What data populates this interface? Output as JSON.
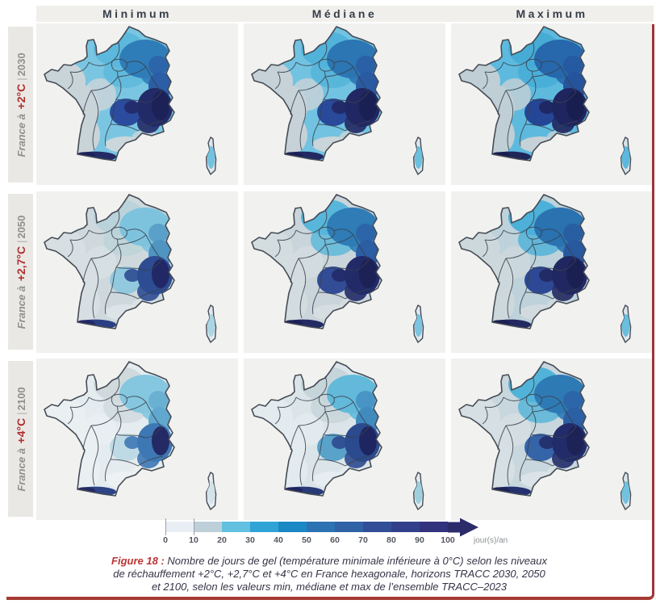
{
  "figure": {
    "columns": [
      {
        "label": "Minimum"
      },
      {
        "label": "Médiane"
      },
      {
        "label": "Maximum"
      }
    ],
    "rows": [
      {
        "prefix": "France à",
        "temp": "+2°C",
        "separator": "|",
        "year": "2030"
      },
      {
        "prefix": "France à",
        "temp": "+2,7°C",
        "separator": "|",
        "year": "2050"
      },
      {
        "prefix": "France à",
        "temp": "+4°C",
        "separator": "|",
        "year": "2100"
      }
    ]
  },
  "colorbar": {
    "tick_labels": [
      "0",
      "10",
      "20",
      "30",
      "40",
      "50",
      "60",
      "70",
      "80",
      "90",
      "100"
    ],
    "unit": "jour(s)/an",
    "segment_colors": [
      "#e9eef5",
      "#bdd0da",
      "#62c0e0",
      "#30a3d6",
      "#1b88c6",
      "#2d72b2",
      "#2f62a6",
      "#314f98",
      "#32408b",
      "#31337c"
    ],
    "arrow_color": "#2c2c6b"
  },
  "caption": {
    "figure_label": "Figure 18 :",
    "line1": "Nombre de jours de gel (température minimale inférieure à 0°C) selon les niveaux",
    "line2": "de réchauffement +2°C, +2,7°C et +4°C en France hexagonale, horizons TRACC 2030, 2050",
    "line3": "et 2100, selon les valeurs min, médiane et max de l’ensemble TRACC–2023"
  },
  "style": {
    "accent_red": "#a53b34",
    "label_red": "#b02e2e",
    "header_text": "#373e4a",
    "panel_bg": "#f1f1ef",
    "strip_bg": "#eae8e5",
    "band_bg": "#f0efec"
  },
  "maps": {
    "cells": [
      {
        "base": "#7ac6e2",
        "west": "#c9d4d9",
        "south": "#ccd7db",
        "north": "#5cb8dc",
        "northeast": "#2f7db8",
        "jura": "#2c5ea6",
        "massif": "#27469a",
        "alps": "#222a68",
        "alps_core": "#1c2158",
        "pyrenees": "#232a66",
        "corsica": "#dde7eb",
        "corsica_center": "#74c2e0"
      },
      {
        "base": "#72c3e1",
        "west": "#c6d2d8",
        "south": "#cad5d9",
        "north": "#52b3da",
        "northeast": "#2c76b3",
        "jura": "#2a5aa2",
        "massif": "#254296",
        "alps": "#212763",
        "alps_core": "#1b2054",
        "pyrenees": "#222862",
        "corsica": "#dde7eb",
        "corsica_center": "#6cc0de"
      },
      {
        "base": "#5dbade",
        "west": "#bfcfd5",
        "south": "#c6d2d7",
        "north": "#46acd6",
        "northeast": "#2768ac",
        "jura": "#26549c",
        "massif": "#223e90",
        "alps": "#1f255e",
        "alps_core": "#191e50",
        "pyrenees": "#202658",
        "corsica": "#d9e4e9",
        "corsica_center": "#5cb8dc"
      },
      {
        "base": "#cfd9dd",
        "west": "#d7dfe2",
        "south": "#dde4e7",
        "north": "#bad3da",
        "northeast": "#7ec3de",
        "jura": "#5094c2",
        "massif": "#8ec8de",
        "alps": "#2d4c92",
        "alps_core": "#222866",
        "pyrenees": "#2b4084",
        "corsica": "#e2eaee",
        "corsica_center": "#abd5e3"
      },
      {
        "base": "#c9d5da",
        "west": "#d3dcdf",
        "south": "#d6dee1",
        "north": "#58b6da",
        "northeast": "#2f7cb6",
        "jura": "#2c5ea4",
        "massif": "#2a4692",
        "alps": "#222a68",
        "alps_core": "#1c2156",
        "pyrenees": "#232a64",
        "corsica": "#dfe8ec",
        "corsica_center": "#7cc4e0"
      },
      {
        "base": "#bdd2da",
        "west": "#cdd8dc",
        "south": "#d1dbdf",
        "north": "#4cb0d8",
        "northeast": "#2a72b0",
        "jura": "#28589e",
        "massif": "#254090",
        "alps": "#212861",
        "alps_core": "#1b2052",
        "pyrenees": "#222860",
        "corsica": "#dce6ea",
        "corsica_center": "#6abede"
      },
      {
        "base": "#e5ecef",
        "west": "#eaeff2",
        "south": "#edf1f3",
        "north": "#d0dadd",
        "northeast": "#86c7e0",
        "jura": "#60a8cd",
        "massif": "#bcdae4",
        "alps": "#3e78b4",
        "alps_core": "#242a64",
        "pyrenees": "#2d4486",
        "corsica": "#e9eff2",
        "corsica_center": "#d2e4ea"
      },
      {
        "base": "#dbe5e9",
        "west": "#e3ebee",
        "south": "#e6edf0",
        "north": "#c6d5d9",
        "northeast": "#62b9da",
        "jura": "#408abe",
        "massif": "#529ec8",
        "alps": "#2c4a8e",
        "alps_core": "#1f2560",
        "pyrenees": "#283a76",
        "corsica": "#e5ecef",
        "corsica_center": "#9ecfde"
      },
      {
        "base": "#c8d7dd",
        "west": "#d6dfe3",
        "south": "#dae3e7",
        "north": "#52b3d8",
        "northeast": "#2e7ab4",
        "jura": "#2c60a4",
        "massif": "#2e5ea4",
        "alps": "#222c6a",
        "alps_core": "#1d2356",
        "pyrenees": "#243070",
        "corsica": "#dce6ea",
        "corsica_center": "#72c1de"
      }
    ]
  },
  "chart_data": {
    "type": "heatmap",
    "subtype": "choropleth-map-grid",
    "title": "Nombre de jours de gel (jour(s)/an)",
    "columns": [
      "Minimum",
      "Médiane",
      "Maximum"
    ],
    "rows": [
      "France à +2°C | 2030",
      "France à +2,7°C | 2050",
      "France à +4°C | 2100"
    ],
    "scale": {
      "min": 0,
      "max": 100,
      "step": 10,
      "unit": "jour(s)/an",
      "open_ended_above": true
    },
    "qualitative_values": {
      "west_coast": "0-20 jours/an",
      "plains_north_east": "30-70 jours/an",
      "alps_massif_central_pyrenees": "80-100+ jours/an",
      "trend": "frost days decrease from +2°C/2030 toward +4°C/2100 and increase from Minimum toward Maximum ensemble values"
    }
  }
}
